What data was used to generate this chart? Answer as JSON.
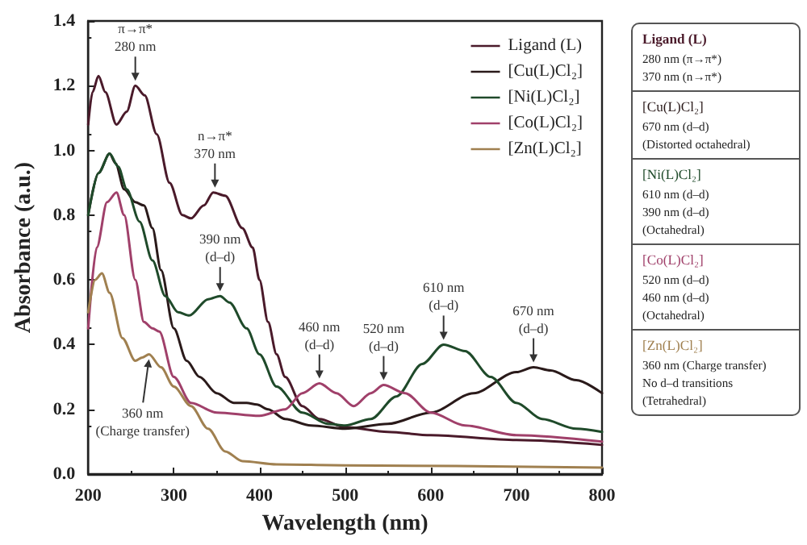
{
  "chart_data": [
    {
      "type": "line",
      "xlabel": "Wavelength (nm)",
      "ylabel": "Absorbance (a.u.)",
      "xlim": [
        200,
        800
      ],
      "xticks": [
        200,
        300,
        400,
        500,
        600,
        700,
        800
      ],
      "ylim": [
        0,
        1.4
      ],
      "yticks": [
        {
          "value": 0,
          "label": "0.0"
        },
        0.2,
        0.4,
        0.6,
        0.8,
        {
          "value": 1,
          "label": "1.0"
        },
        1.2,
        1.4
      ],
      "grid": false,
      "legend": "top right",
      "marker": "none",
      "line_style": "solid",
      "series": [
        {
          "name": "Ligand (L)",
          "color": "#4a1a2a",
          "x": [
            200,
            205,
            212,
            220,
            233,
            245,
            255,
            266,
            280,
            295,
            310,
            320,
            335,
            346,
            360,
            380,
            392,
            400,
            410,
            420,
            430,
            450,
            470,
            500,
            550,
            600,
            700,
            800
          ],
          "values": [
            1.08,
            1.18,
            1.23,
            1.18,
            1.08,
            1.12,
            1.2,
            1.17,
            1.05,
            0.9,
            0.8,
            0.79,
            0.83,
            0.87,
            0.86,
            0.76,
            0.7,
            0.6,
            0.47,
            0.37,
            0.3,
            0.21,
            0.17,
            0.145,
            0.13,
            0.12,
            0.105,
            0.09
          ]
        },
        {
          "name": "[Cu(L)Cl₂]",
          "color": "#2a1a1a",
          "x": [
            200,
            212,
            225,
            232,
            242,
            255,
            265,
            275,
            285,
            300,
            315,
            330,
            350,
            370,
            385,
            397,
            410,
            430,
            460,
            500,
            550,
            600,
            650,
            700,
            720,
            740,
            770,
            800
          ],
          "values": [
            0.8,
            0.93,
            0.99,
            0.96,
            0.88,
            0.84,
            0.83,
            0.76,
            0.63,
            0.45,
            0.35,
            0.3,
            0.25,
            0.22,
            0.22,
            0.215,
            0.2,
            0.17,
            0.15,
            0.14,
            0.155,
            0.19,
            0.25,
            0.315,
            0.33,
            0.32,
            0.29,
            0.25
          ]
        },
        {
          "name": "[Ni(L)Cl₂]",
          "color": "#1f4a2a",
          "x": [
            200,
            212,
            225,
            235,
            245,
            260,
            275,
            290,
            305,
            318,
            340,
            354,
            365,
            385,
            400,
            420,
            450,
            480,
            500,
            530,
            560,
            590,
            615,
            640,
            670,
            700,
            730,
            770,
            800
          ],
          "values": [
            0.8,
            0.93,
            0.99,
            0.95,
            0.88,
            0.78,
            0.66,
            0.55,
            0.5,
            0.49,
            0.54,
            0.55,
            0.53,
            0.45,
            0.37,
            0.27,
            0.19,
            0.155,
            0.15,
            0.17,
            0.24,
            0.34,
            0.4,
            0.38,
            0.3,
            0.22,
            0.17,
            0.14,
            0.13
          ]
        },
        {
          "name": "[Co(L)Cl₂]",
          "color": "#a0406a",
          "x": [
            200,
            210,
            222,
            233,
            242,
            255,
            265,
            275,
            283,
            300,
            320,
            350,
            400,
            430,
            450,
            470,
            490,
            510,
            530,
            545,
            570,
            600,
            640,
            700,
            800
          ],
          "values": [
            0.45,
            0.7,
            0.84,
            0.87,
            0.8,
            0.6,
            0.47,
            0.45,
            0.44,
            0.3,
            0.22,
            0.19,
            0.18,
            0.2,
            0.25,
            0.28,
            0.25,
            0.21,
            0.25,
            0.275,
            0.25,
            0.19,
            0.15,
            0.12,
            0.1
          ]
        },
        {
          "name": "[Zn(L)Cl₂]",
          "color": "#a08050",
          "x": [
            200,
            208,
            216,
            225,
            240,
            255,
            263,
            271,
            285,
            300,
            320,
            340,
            360,
            380,
            420,
            500,
            800
          ],
          "values": [
            0.5,
            0.6,
            0.62,
            0.56,
            0.42,
            0.35,
            0.36,
            0.37,
            0.33,
            0.27,
            0.21,
            0.14,
            0.07,
            0.04,
            0.03,
            0.027,
            0.02
          ]
        }
      ],
      "annotations": [
        {
          "text": "π→π*\n280 nm",
          "x": 255,
          "y": 1.2
        },
        {
          "text": "n→π*\n370 nm",
          "x": 348,
          "y": 0.87
        },
        {
          "text": "390 nm\n(d–d)",
          "x": 354,
          "y": 0.55
        },
        {
          "text": "460 nm\n(d–d)",
          "x": 470,
          "y": 0.28
        },
        {
          "text": "520 nm\n(d–d)",
          "x": 545,
          "y": 0.275
        },
        {
          "text": "610 nm\n(d–d)",
          "x": 615,
          "y": 0.4
        },
        {
          "text": "670 nm\n(d–d)",
          "x": 720,
          "y": 0.33
        },
        {
          "text": "360 nm\n(Charge transfer)",
          "x": 271,
          "y": 0.37
        }
      ]
    },
    {
      "type": "other",
      "annotations": [
        "Ligand (L)\n280 nm (π→π*)\n370 nm (n→π*)",
        "[Cu(L)Cl₂]\n670 nm (d–d)\n(Distorted octahedral)",
        "[Ni(L)Cl₂]\n610 nm (d–d)\n390 nm (d–d)\n(Octahedral)",
        "[Co(L)Cl₂]\n520 nm (d–d)\n460 nm (d–d)\n(Octahedral)",
        "[Zn(L)Cl₂]\n360 nm (Charge transfer)\nNo d–d transitions\n(Tetrahedral)"
      ]
    }
  ]
}
